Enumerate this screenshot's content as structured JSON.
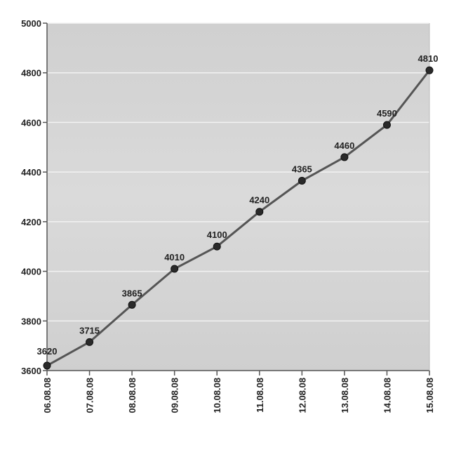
{
  "chart_data": {
    "type": "line",
    "title": "",
    "xlabel": "",
    "ylabel": "",
    "categories": [
      "06.08.08",
      "07.08.08",
      "08.08.08",
      "09.08.08",
      "10.08.08",
      "11.08.08",
      "12.08.08",
      "13.08.08",
      "14.08.08",
      "15.08.08"
    ],
    "values": [
      3620,
      3715,
      3865,
      4010,
      4100,
      4240,
      4365,
      4460,
      4590,
      4810
    ],
    "data_labels": [
      "3620",
      "3715",
      "3865",
      "4010",
      "4100",
      "4240",
      "4365",
      "4460",
      "4590",
      "4810"
    ],
    "ylim": [
      3600,
      5000
    ],
    "yticks": [
      3600,
      3800,
      4000,
      4200,
      4400,
      4600,
      4800,
      5000
    ],
    "ytick_labels": [
      "3600",
      "3800",
      "4000",
      "4200",
      "4400",
      "4600",
      "4800",
      "5000"
    ],
    "grid": true,
    "legend": "none",
    "colors": {
      "plot_background": "#d4d4d4",
      "line": "#555555",
      "marker": "#2a2a2a",
      "gridline": "#f2f2f2"
    }
  }
}
